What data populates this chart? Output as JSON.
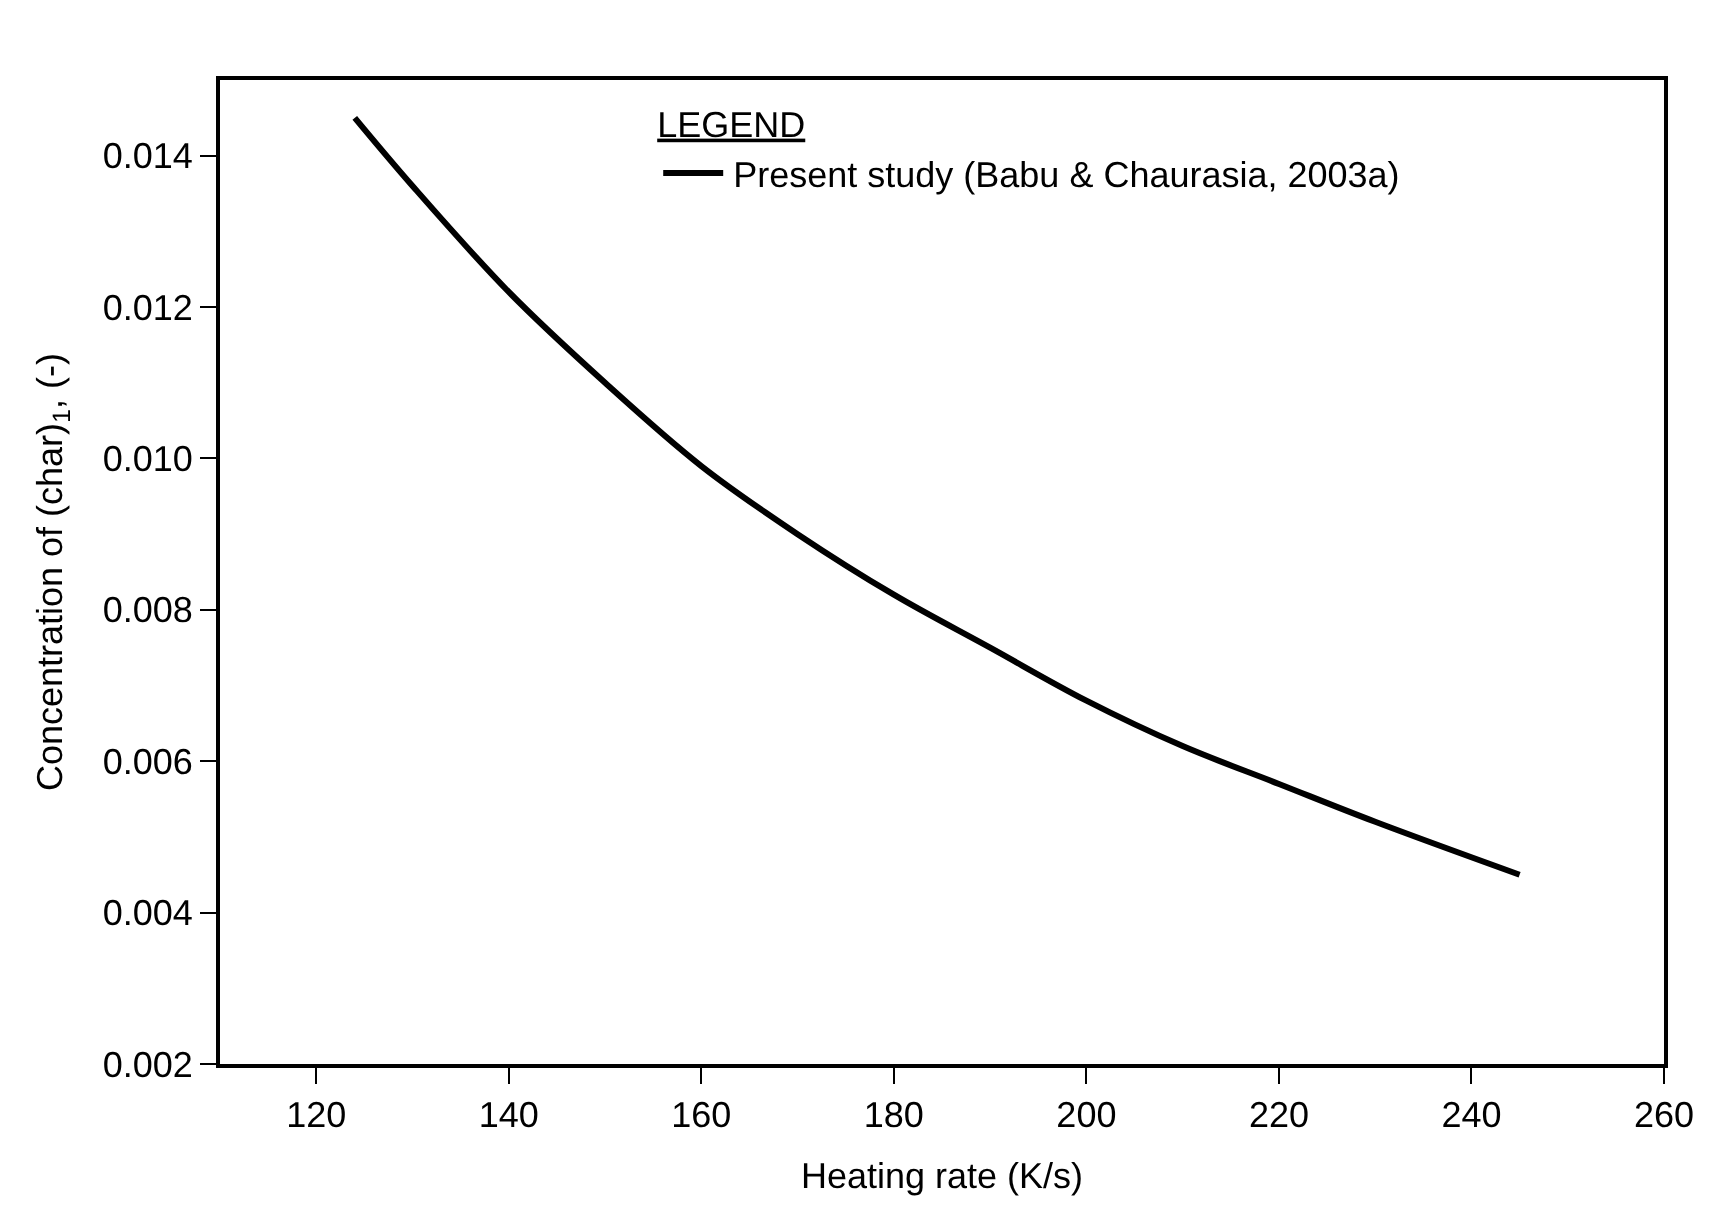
{
  "chart_data": {
    "type": "line",
    "xlabel": "Heating rate (K/s)",
    "ylabel": "Concentration of (char)$_{1}$, (-)",
    "legend_title": "LEGEND",
    "x": [
      124,
      130,
      140,
      150,
      160,
      170,
      180,
      190,
      200,
      210,
      220,
      230,
      245
    ],
    "series": [
      {
        "name": "Present study (Babu & Chaurasia, 2003a)",
        "color": "#000000",
        "values": [
          0.0145,
          0.0136,
          0.0122,
          0.011,
          0.0099,
          0.009,
          0.0082,
          0.0075,
          0.0068,
          0.0062,
          0.0057,
          0.0052,
          0.0045
        ]
      }
    ],
    "xlim": [
      110,
      260
    ],
    "xticks": [
      120,
      140,
      160,
      180,
      200,
      220,
      240,
      260
    ],
    "ylim": [
      0.002,
      0.015
    ],
    "yticks": [
      {
        "value": 0.002,
        "label": "0.002"
      },
      {
        "value": 0.004,
        "label": "0.004"
      },
      {
        "value": 0.006,
        "label": "0.006"
      },
      {
        "value": 0.008,
        "label": "0.008"
      },
      {
        "value": 0.01,
        "label": "0.010"
      },
      {
        "value": 0.012,
        "label": "0.012"
      },
      {
        "value": 0.014,
        "label": "0.014"
      }
    ],
    "legend": "top",
    "marker": "none",
    "line_style": "solid"
  }
}
